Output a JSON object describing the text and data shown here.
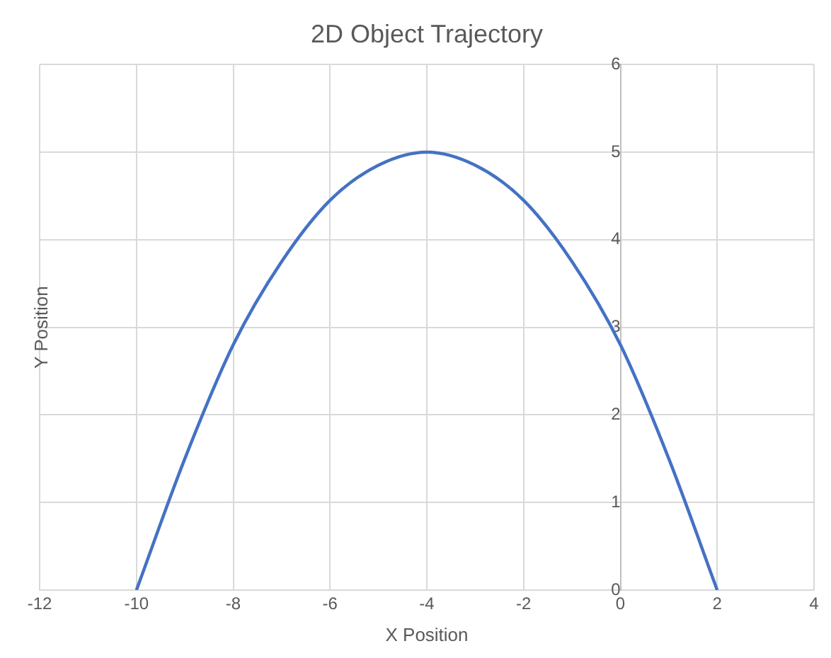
{
  "chart_data": {
    "type": "line",
    "title": "2D Object Trajectory",
    "xlabel": "X Position",
    "ylabel": "Y Position",
    "x": [
      -10,
      -9,
      -8,
      -7,
      -6,
      -5,
      -4,
      -3,
      -2,
      -1,
      0,
      1,
      2
    ],
    "series": [
      {
        "color": "#4472c4",
        "values": [
          0,
          1.5,
          2.8,
          3.75,
          4.45,
          4.85,
          5,
          4.85,
          4.45,
          3.75,
          2.8,
          1.5,
          0
        ]
      }
    ],
    "xlim": [
      -12,
      4
    ],
    "xticks": [
      -12,
      -10,
      -8,
      -6,
      -4,
      -2,
      0,
      2,
      4
    ],
    "ylim": [
      0,
      6
    ],
    "yticks": [
      0,
      1,
      2,
      3,
      4,
      5,
      6
    ],
    "grid": true,
    "legend": false,
    "marker": "none",
    "line_style": "solid"
  }
}
